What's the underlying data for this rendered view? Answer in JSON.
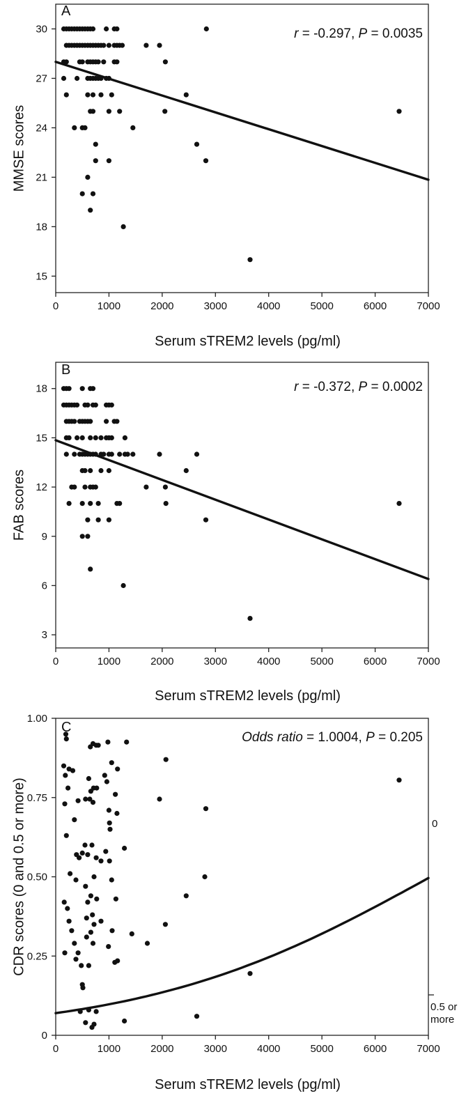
{
  "chart_data": [
    {
      "type": "scatter",
      "panel_label": "A",
      "stat_r": "r",
      "stat_r_value": " = -0.297, ",
      "stat_p": "P",
      "stat_p_value": " = 0.0035",
      "xlabel": "Serum sTREM2 levels (pg/ml)",
      "ylabel": "MMSE scores",
      "xlim": [
        0,
        7000
      ],
      "ylim": [
        14,
        31.5
      ],
      "x_ticks": [
        0,
        1000,
        2000,
        3000,
        4000,
        5000,
        6000,
        7000
      ],
      "x_tick_labels": [
        "0",
        "1000",
        "2000",
        "3000",
        "4000",
        "5000",
        "6000",
        "7000"
      ],
      "y_ticks": [
        15,
        18,
        21,
        24,
        27,
        30
      ],
      "y_tick_labels": [
        "15",
        "18",
        "21",
        "24",
        "27",
        "30"
      ],
      "grid": false,
      "fit_line": {
        "type": "linear",
        "x": [
          0,
          7000
        ],
        "y": [
          28.0,
          20.85
        ]
      },
      "points": [
        [
          150,
          30
        ],
        [
          200,
          30
        ],
        [
          250,
          30
        ],
        [
          300,
          30
        ],
        [
          350,
          30
        ],
        [
          400,
          30
        ],
        [
          450,
          30
        ],
        [
          500,
          30
        ],
        [
          550,
          30
        ],
        [
          600,
          30
        ],
        [
          650,
          30
        ],
        [
          700,
          30
        ],
        [
          950,
          30
        ],
        [
          1100,
          30
        ],
        [
          1150,
          30
        ],
        [
          2830,
          30
        ],
        [
          200,
          29
        ],
        [
          250,
          29
        ],
        [
          300,
          29
        ],
        [
          350,
          29
        ],
        [
          400,
          29
        ],
        [
          450,
          29
        ],
        [
          500,
          29
        ],
        [
          550,
          29
        ],
        [
          600,
          29
        ],
        [
          650,
          29
        ],
        [
          700,
          29
        ],
        [
          750,
          29
        ],
        [
          800,
          29
        ],
        [
          850,
          29
        ],
        [
          900,
          29
        ],
        [
          1000,
          29
        ],
        [
          1100,
          29
        ],
        [
          1150,
          29
        ],
        [
          1200,
          29
        ],
        [
          1250,
          29
        ],
        [
          1700,
          29
        ],
        [
          1950,
          29
        ],
        [
          150,
          28
        ],
        [
          200,
          28
        ],
        [
          450,
          28
        ],
        [
          500,
          28
        ],
        [
          600,
          28
        ],
        [
          650,
          28
        ],
        [
          700,
          28
        ],
        [
          750,
          28
        ],
        [
          800,
          28
        ],
        [
          900,
          28
        ],
        [
          1100,
          28
        ],
        [
          1150,
          28
        ],
        [
          2060,
          28
        ],
        [
          150,
          27
        ],
        [
          400,
          27
        ],
        [
          600,
          27
        ],
        [
          650,
          27
        ],
        [
          700,
          27
        ],
        [
          750,
          27
        ],
        [
          800,
          27
        ],
        [
          850,
          27
        ],
        [
          950,
          27
        ],
        [
          1000,
          27
        ],
        [
          200,
          26
        ],
        [
          600,
          26
        ],
        [
          700,
          26
        ],
        [
          850,
          26
        ],
        [
          1050,
          26
        ],
        [
          2450,
          26
        ],
        [
          650,
          25
        ],
        [
          700,
          25
        ],
        [
          1000,
          25
        ],
        [
          1200,
          25
        ],
        [
          2050,
          25
        ],
        [
          6450,
          25
        ],
        [
          350,
          24
        ],
        [
          500,
          24
        ],
        [
          550,
          24
        ],
        [
          1450,
          24
        ],
        [
          750,
          23
        ],
        [
          2650,
          23
        ],
        [
          750,
          22
        ],
        [
          1000,
          22
        ],
        [
          2820,
          22
        ],
        [
          600,
          21
        ],
        [
          500,
          20
        ],
        [
          700,
          20
        ],
        [
          650,
          19
        ],
        [
          1270,
          18
        ],
        [
          3650,
          16
        ]
      ]
    },
    {
      "type": "scatter",
      "panel_label": "B",
      "stat_r": "r",
      "stat_r_value": " = -0.372, ",
      "stat_p": "P",
      "stat_p_value": " = 0.0002",
      "xlabel": "Serum sTREM2 levels (pg/ml)",
      "ylabel": "FAB scores",
      "xlim": [
        0,
        7000
      ],
      "ylim": [
        2.2,
        19.6
      ],
      "x_ticks": [
        0,
        1000,
        2000,
        3000,
        4000,
        5000,
        6000,
        7000
      ],
      "x_tick_labels": [
        "0",
        "1000",
        "2000",
        "3000",
        "4000",
        "5000",
        "6000",
        "7000"
      ],
      "y_ticks": [
        3,
        6,
        9,
        12,
        15,
        18
      ],
      "y_tick_labels": [
        "3",
        "6",
        "9",
        "12",
        "15",
        "18"
      ],
      "grid": false,
      "fit_line": {
        "type": "linear",
        "x": [
          0,
          7000
        ],
        "y": [
          14.85,
          6.4
        ]
      },
      "points": [
        [
          150,
          18
        ],
        [
          200,
          18
        ],
        [
          250,
          18
        ],
        [
          500,
          18
        ],
        [
          650,
          18
        ],
        [
          700,
          18
        ],
        [
          150,
          17
        ],
        [
          200,
          17
        ],
        [
          250,
          17
        ],
        [
          300,
          17
        ],
        [
          350,
          17
        ],
        [
          400,
          17
        ],
        [
          550,
          17
        ],
        [
          600,
          17
        ],
        [
          700,
          17
        ],
        [
          750,
          17
        ],
        [
          950,
          17
        ],
        [
          1000,
          17
        ],
        [
          1050,
          17
        ],
        [
          200,
          16
        ],
        [
          250,
          16
        ],
        [
          300,
          16
        ],
        [
          350,
          16
        ],
        [
          450,
          16
        ],
        [
          500,
          16
        ],
        [
          550,
          16
        ],
        [
          600,
          16
        ],
        [
          650,
          16
        ],
        [
          950,
          16
        ],
        [
          1100,
          16
        ],
        [
          1150,
          16
        ],
        [
          200,
          15
        ],
        [
          250,
          15
        ],
        [
          400,
          15
        ],
        [
          500,
          15
        ],
        [
          650,
          15
        ],
        [
          750,
          15
        ],
        [
          850,
          15
        ],
        [
          950,
          15
        ],
        [
          1000,
          15
        ],
        [
          1050,
          15
        ],
        [
          1300,
          15
        ],
        [
          200,
          14
        ],
        [
          350,
          14
        ],
        [
          450,
          14
        ],
        [
          500,
          14
        ],
        [
          550,
          14
        ],
        [
          600,
          14
        ],
        [
          650,
          14
        ],
        [
          700,
          14
        ],
        [
          750,
          14
        ],
        [
          850,
          14
        ],
        [
          900,
          14
        ],
        [
          1000,
          14
        ],
        [
          1050,
          14
        ],
        [
          1200,
          14
        ],
        [
          1300,
          14
        ],
        [
          1350,
          14
        ],
        [
          1450,
          14
        ],
        [
          1950,
          14
        ],
        [
          2650,
          14
        ],
        [
          500,
          13
        ],
        [
          550,
          13
        ],
        [
          650,
          13
        ],
        [
          850,
          13
        ],
        [
          1000,
          13
        ],
        [
          2450,
          13
        ],
        [
          300,
          12
        ],
        [
          350,
          12
        ],
        [
          550,
          12
        ],
        [
          650,
          12
        ],
        [
          700,
          12
        ],
        [
          750,
          12
        ],
        [
          1700,
          12
        ],
        [
          2060,
          12
        ],
        [
          250,
          11
        ],
        [
          500,
          11
        ],
        [
          650,
          11
        ],
        [
          800,
          11
        ],
        [
          1150,
          11
        ],
        [
          1200,
          11
        ],
        [
          2070,
          11
        ],
        [
          6450,
          11
        ],
        [
          600,
          10
        ],
        [
          800,
          10
        ],
        [
          1000,
          10
        ],
        [
          2820,
          10
        ],
        [
          500,
          9
        ],
        [
          600,
          9
        ],
        [
          650,
          7
        ],
        [
          1270,
          6
        ],
        [
          3650,
          4
        ]
      ]
    },
    {
      "type": "scatter",
      "panel_label": "C",
      "stat_italic": "Odds ratio",
      "stat_middle": " = 1.0004, ",
      "stat_p": "P",
      "stat_p_value": " = 0.205",
      "xlabel": "Serum sTREM2 levels (pg/ml)",
      "ylabel": "CDR scores (0 and 0.5 or more)",
      "right_label_top": "0",
      "right_label_bottom_1": "0.5 or",
      "right_label_bottom_2": "more",
      "xlim": [
        0,
        7000
      ],
      "ylim": [
        0,
        1.0
      ],
      "x_ticks": [
        0,
        1000,
        2000,
        3000,
        4000,
        5000,
        6000,
        7000
      ],
      "x_tick_labels": [
        "0",
        "1000",
        "2000",
        "3000",
        "4000",
        "5000",
        "6000",
        "7000"
      ],
      "y_ticks": [
        0,
        0.25,
        0.5,
        0.75,
        1.0
      ],
      "y_tick_labels": [
        "0",
        "0.25",
        "0.50",
        "0.75",
        "1.00"
      ],
      "grid": false,
      "fit_line": {
        "type": "logistic",
        "intercept": -2.59,
        "slope": 0.0003677
      },
      "points": [
        [
          190,
          0.95
        ],
        [
          200,
          0.935
        ],
        [
          150,
          0.85
        ],
        [
          250,
          0.84
        ],
        [
          320,
          0.835
        ],
        [
          180,
          0.82
        ],
        [
          230,
          0.78
        ],
        [
          170,
          0.73
        ],
        [
          420,
          0.74
        ],
        [
          350,
          0.68
        ],
        [
          200,
          0.63
        ],
        [
          390,
          0.57
        ],
        [
          440,
          0.56
        ],
        [
          500,
          0.575
        ],
        [
          550,
          0.6
        ],
        [
          600,
          0.57
        ],
        [
          270,
          0.51
        ],
        [
          380,
          0.49
        ],
        [
          160,
          0.42
        ],
        [
          220,
          0.4
        ],
        [
          250,
          0.36
        ],
        [
          300,
          0.33
        ],
        [
          350,
          0.29
        ],
        [
          420,
          0.26
        ],
        [
          480,
          0.22
        ],
        [
          170,
          0.26
        ],
        [
          380,
          0.24
        ],
        [
          650,
          0.91
        ],
        [
          700,
          0.92
        ],
        [
          760,
          0.915
        ],
        [
          800,
          0.915
        ],
        [
          980,
          0.925
        ],
        [
          1330,
          0.925
        ],
        [
          1050,
          0.86
        ],
        [
          920,
          0.82
        ],
        [
          960,
          0.8
        ],
        [
          1160,
          0.84
        ],
        [
          620,
          0.81
        ],
        [
          660,
          0.77
        ],
        [
          710,
          0.78
        ],
        [
          770,
          0.78
        ],
        [
          1120,
          0.76
        ],
        [
          1150,
          0.7
        ],
        [
          560,
          0.745
        ],
        [
          640,
          0.745
        ],
        [
          700,
          0.735
        ],
        [
          1000,
          0.71
        ],
        [
          1010,
          0.67
        ],
        [
          1020,
          0.65
        ],
        [
          680,
          0.6
        ],
        [
          1290,
          0.59
        ],
        [
          760,
          0.56
        ],
        [
          850,
          0.55
        ],
        [
          940,
          0.58
        ],
        [
          560,
          0.47
        ],
        [
          720,
          0.5
        ],
        [
          1010,
          0.55
        ],
        [
          1050,
          0.49
        ],
        [
          660,
          0.44
        ],
        [
          600,
          0.42
        ],
        [
          770,
          0.43
        ],
        [
          1130,
          0.43
        ],
        [
          690,
          0.38
        ],
        [
          580,
          0.37
        ],
        [
          720,
          0.35
        ],
        [
          850,
          0.36
        ],
        [
          1060,
          0.33
        ],
        [
          660,
          0.325
        ],
        [
          580,
          0.31
        ],
        [
          700,
          0.29
        ],
        [
          990,
          0.28
        ],
        [
          1110,
          0.23
        ],
        [
          1160,
          0.235
        ],
        [
          1430,
          0.32
        ],
        [
          620,
          0.22
        ],
        [
          500,
          0.16
        ],
        [
          510,
          0.15
        ],
        [
          2070,
          0.87
        ],
        [
          1950,
          0.745
        ],
        [
          2820,
          0.715
        ],
        [
          2800,
          0.5
        ],
        [
          2450,
          0.44
        ],
        [
          1720,
          0.29
        ],
        [
          2060,
          0.35
        ],
        [
          3650,
          0.195
        ],
        [
          6450,
          0.805
        ],
        [
          460,
          0.075
        ],
        [
          560,
          0.04
        ],
        [
          620,
          0.08
        ],
        [
          680,
          0.025
        ],
        [
          760,
          0.075
        ],
        [
          720,
          0.035
        ],
        [
          1290,
          0.045
        ],
        [
          2650,
          0.06
        ]
      ]
    }
  ]
}
